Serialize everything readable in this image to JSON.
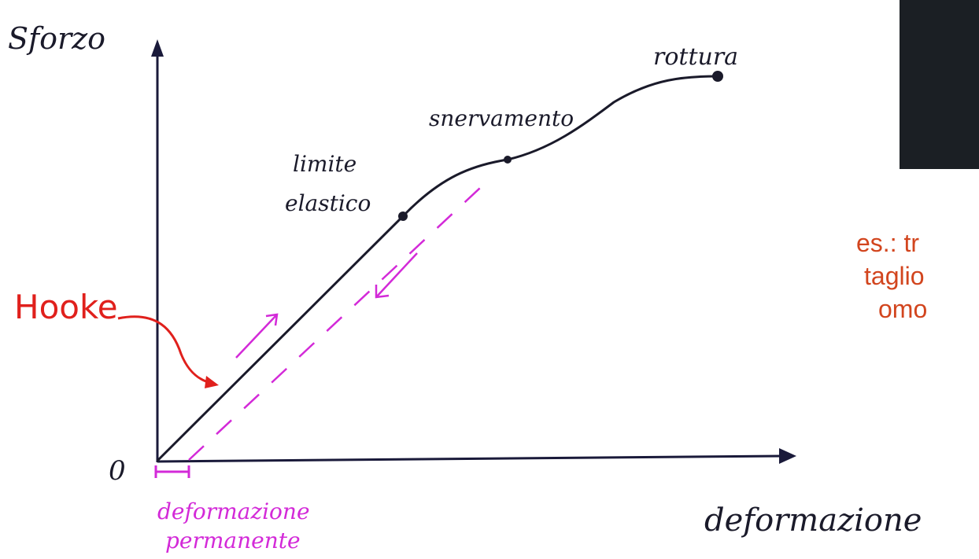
{
  "axes": {
    "y_label": "Sforzo",
    "origin": "0",
    "x_label": "deformazione"
  },
  "annotations": {
    "hooke": "Hooke",
    "elastic_limit": [
      "limite",
      "elastico"
    ],
    "yield": "snervamento",
    "rupture": "rottura",
    "permanent_deformation": [
      "deformazione",
      "permanente"
    ]
  },
  "side_note": [
    "es.: tr",
    "taglio",
    "omo"
  ]
}
